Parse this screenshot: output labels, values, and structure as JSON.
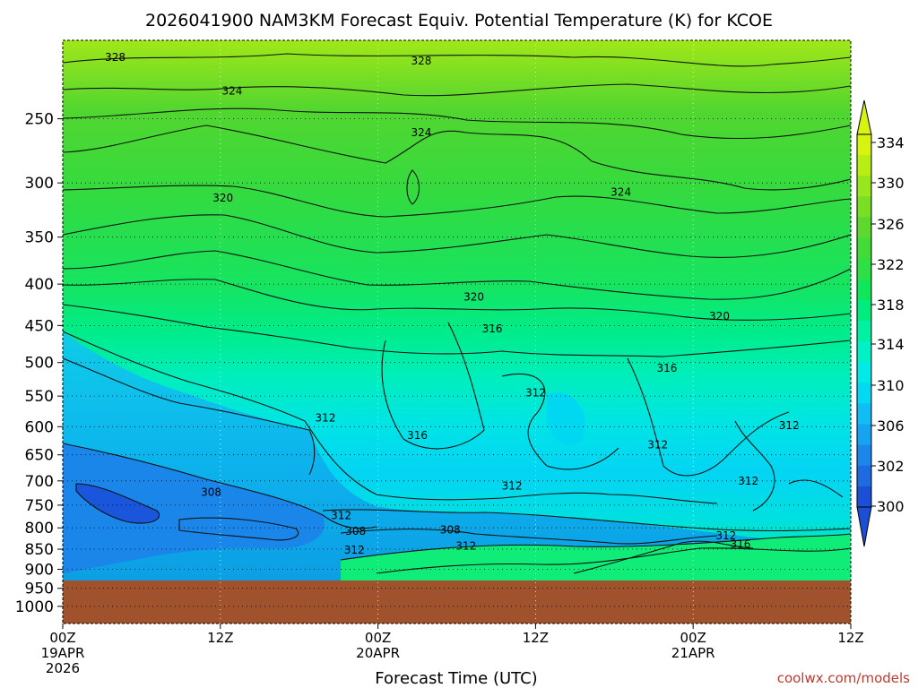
{
  "chart_data": {
    "type": "heatmap",
    "title": "2026041900 NAM3KM Forecast Equiv. Potential Temperature (K) for KCOE",
    "xlabel": "Forecast Time (UTC)",
    "credit": "coolwx.com/models",
    "x_ticks": [
      {
        "hour": 0,
        "line1": "00Z",
        "line2": "19APR",
        "line3": "2026"
      },
      {
        "hour": 12,
        "line1": "12Z",
        "line2": "",
        "line3": ""
      },
      {
        "hour": 24,
        "line1": "00Z",
        "line2": "20APR",
        "line3": ""
      },
      {
        "hour": 36,
        "line1": "12Z",
        "line2": "",
        "line3": ""
      },
      {
        "hour": 48,
        "line1": "00Z",
        "line2": "21APR",
        "line3": ""
      },
      {
        "hour": 60,
        "line1": "12Z",
        "line2": "",
        "line3": ""
      }
    ],
    "xlim_hours": [
      0,
      60
    ],
    "y_ticks_hpa": [
      250,
      300,
      350,
      400,
      450,
      500,
      550,
      600,
      650,
      700,
      750,
      800,
      850,
      900,
      950,
      1000
    ],
    "ylim_hpa": [
      200,
      1050
    ],
    "y_axis_scale": "log-pressure",
    "surface_pressure_hpa": 930,
    "colorbar": {
      "labels": [
        "334",
        "330",
        "326",
        "322",
        "318",
        "314",
        "310",
        "306",
        "302",
        "300"
      ],
      "levels": [
        300,
        302,
        304,
        306,
        308,
        310,
        312,
        314,
        316,
        318,
        320,
        322,
        324,
        326,
        328,
        330,
        332,
        334
      ],
      "colors": [
        "#1a4fd6",
        "#1e6ae0",
        "#1c86ea",
        "#16a3f0",
        "#10bdf4",
        "#04d9f4",
        "#00ebe6",
        "#00f0c8",
        "#00f0a4",
        "#00ec7c",
        "#10e65a",
        "#2ee046",
        "#44da38",
        "#5cd82e",
        "#7ade24",
        "#98e61c",
        "#b8ee14",
        "#d6f410"
      ]
    },
    "contour_labels": [
      {
        "text": "328",
        "hour": 4.0,
        "hpa": 210
      },
      {
        "text": "328",
        "hour": 27.3,
        "hpa": 212
      },
      {
        "text": "324",
        "hour": 12.9,
        "hpa": 231
      },
      {
        "text": "324",
        "hour": 27.3,
        "hpa": 260
      },
      {
        "text": "324",
        "hour": 42.5,
        "hpa": 308
      },
      {
        "text": "320",
        "hour": 12.2,
        "hpa": 313
      },
      {
        "text": "320",
        "hour": 31.3,
        "hpa": 415
      },
      {
        "text": "320",
        "hour": 50.0,
        "hpa": 438
      },
      {
        "text": "316",
        "hour": 32.7,
        "hpa": 454
      },
      {
        "text": "316",
        "hour": 46.0,
        "hpa": 508
      },
      {
        "text": "316",
        "hour": 27.0,
        "hpa": 615
      },
      {
        "text": "316",
        "hour": 51.6,
        "hpa": 838
      },
      {
        "text": "312",
        "hour": 20.0,
        "hpa": 585
      },
      {
        "text": "312",
        "hour": 36.0,
        "hpa": 545
      },
      {
        "text": "312",
        "hour": 45.3,
        "hpa": 632
      },
      {
        "text": "312",
        "hour": 55.3,
        "hpa": 598
      },
      {
        "text": "312",
        "hour": 52.2,
        "hpa": 700
      },
      {
        "text": "312",
        "hour": 34.2,
        "hpa": 710
      },
      {
        "text": "312",
        "hour": 21.2,
        "hpa": 772
      },
      {
        "text": "312",
        "hour": 22.2,
        "hpa": 852
      },
      {
        "text": "312",
        "hour": 30.7,
        "hpa": 842
      },
      {
        "text": "312",
        "hour": 50.5,
        "hpa": 818
      },
      {
        "text": "308",
        "hour": 11.3,
        "hpa": 723
      },
      {
        "text": "308",
        "hour": 22.3,
        "hpa": 808
      },
      {
        "text": "308",
        "hour": 29.5,
        "hpa": 805
      }
    ],
    "grid": "dotted"
  }
}
